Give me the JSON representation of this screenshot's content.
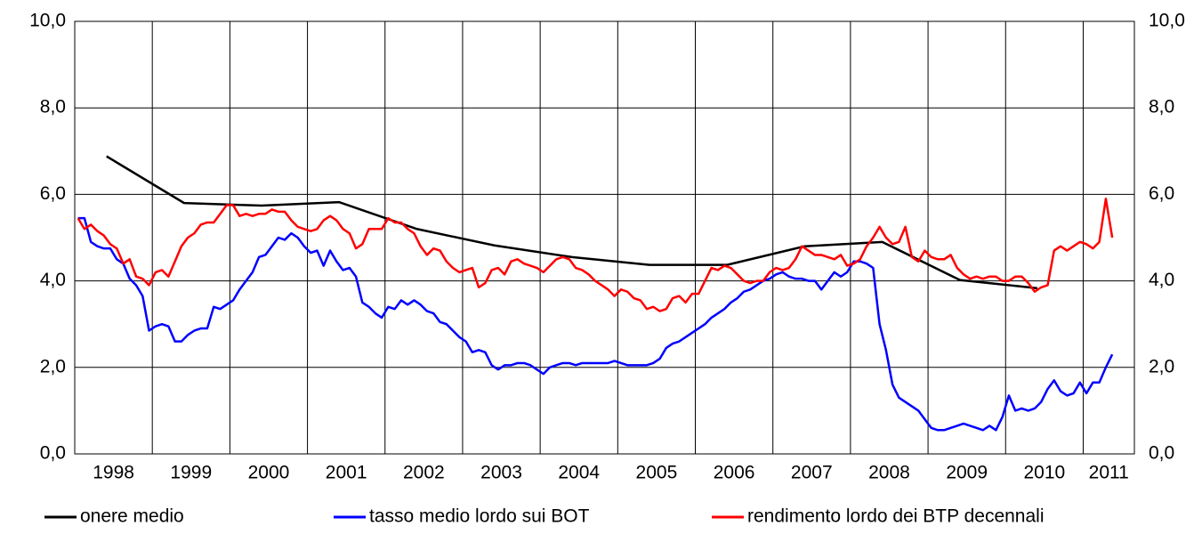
{
  "chart_data": {
    "type": "line",
    "x": [
      1998.042,
      1998.125,
      1998.208,
      1998.292,
      1998.375,
      1998.458,
      1998.542,
      1998.625,
      1998.708,
      1998.792,
      1998.875,
      1998.958,
      1999.042,
      1999.125,
      1999.208,
      1999.292,
      1999.375,
      1999.458,
      1999.542,
      1999.625,
      1999.708,
      1999.792,
      1999.875,
      1999.958,
      2000.042,
      2000.125,
      2000.208,
      2000.292,
      2000.375,
      2000.458,
      2000.542,
      2000.625,
      2000.708,
      2000.792,
      2000.875,
      2000.958,
      2001.042,
      2001.125,
      2001.208,
      2001.292,
      2001.375,
      2001.458,
      2001.542,
      2001.625,
      2001.708,
      2001.792,
      2001.875,
      2001.958,
      2002.042,
      2002.125,
      2002.208,
      2002.292,
      2002.375,
      2002.458,
      2002.542,
      2002.625,
      2002.708,
      2002.792,
      2002.875,
      2002.958,
      2003.042,
      2003.125,
      2003.208,
      2003.292,
      2003.375,
      2003.458,
      2003.542,
      2003.625,
      2003.708,
      2003.792,
      2003.875,
      2003.958,
      2004.042,
      2004.125,
      2004.208,
      2004.292,
      2004.375,
      2004.458,
      2004.542,
      2004.625,
      2004.708,
      2004.792,
      2004.875,
      2004.958,
      2005.042,
      2005.125,
      2005.208,
      2005.292,
      2005.375,
      2005.458,
      2005.542,
      2005.625,
      2005.708,
      2005.792,
      2005.875,
      2005.958,
      2006.042,
      2006.125,
      2006.208,
      2006.292,
      2006.375,
      2006.458,
      2006.542,
      2006.625,
      2006.708,
      2006.792,
      2006.875,
      2006.958,
      2007.042,
      2007.125,
      2007.208,
      2007.292,
      2007.375,
      2007.458,
      2007.542,
      2007.625,
      2007.708,
      2007.792,
      2007.875,
      2007.958,
      2008.042,
      2008.125,
      2008.208,
      2008.292,
      2008.375,
      2008.458,
      2008.542,
      2008.625,
      2008.708,
      2008.792,
      2008.875,
      2008.958,
      2009.042,
      2009.125,
      2009.208,
      2009.292,
      2009.375,
      2009.458,
      2009.542,
      2009.625,
      2009.708,
      2009.792,
      2009.875,
      2009.958,
      2010.042,
      2010.125,
      2010.208,
      2010.292,
      2010.375,
      2010.458,
      2010.542,
      2010.625,
      2010.708,
      2010.792,
      2010.875,
      2010.958,
      2011.042,
      2011.125,
      2011.208,
      2011.292,
      2011.375
    ],
    "series": [
      {
        "name": "onere medio",
        "color": "#000000",
        "x": [
          1998.41,
          1999.41,
          2000.41,
          2001.41,
          2002.41,
          2003.41,
          2004.41,
          2005.41,
          2006.41,
          2007.41,
          2008.41,
          2009.41,
          2010.41
        ],
        "values": [
          6.88,
          5.8,
          5.74,
          5.82,
          5.2,
          4.82,
          4.55,
          4.37,
          4.37,
          4.8,
          4.9,
          4.02,
          3.83
        ]
      },
      {
        "name": "tasso medio lordo sui BOT",
        "color": "#0000ff",
        "values": [
          5.45,
          5.45,
          4.9,
          4.8,
          4.75,
          4.75,
          4.5,
          4.4,
          4.05,
          3.9,
          3.65,
          2.85,
          2.95,
          3.0,
          2.95,
          2.6,
          2.6,
          2.75,
          2.85,
          2.9,
          2.9,
          3.4,
          3.35,
          3.45,
          3.55,
          3.8,
          4.0,
          4.2,
          4.55,
          4.6,
          4.8,
          5.0,
          4.95,
          5.1,
          5.0,
          4.8,
          4.65,
          4.7,
          4.35,
          4.7,
          4.45,
          4.25,
          4.3,
          4.1,
          3.5,
          3.4,
          3.25,
          3.15,
          3.4,
          3.35,
          3.55,
          3.45,
          3.55,
          3.45,
          3.3,
          3.25,
          3.05,
          3.0,
          2.85,
          2.7,
          2.6,
          2.35,
          2.4,
          2.35,
          2.05,
          1.95,
          2.05,
          2.05,
          2.1,
          2.1,
          2.05,
          1.95,
          1.85,
          2.0,
          2.05,
          2.1,
          2.1,
          2.05,
          2.1,
          2.1,
          2.1,
          2.1,
          2.1,
          2.15,
          2.1,
          2.05,
          2.05,
          2.05,
          2.05,
          2.1,
          2.2,
          2.45,
          2.55,
          2.6,
          2.7,
          2.8,
          2.9,
          3.0,
          3.15,
          3.25,
          3.35,
          3.5,
          3.6,
          3.75,
          3.8,
          3.9,
          4.0,
          4.05,
          4.15,
          4.2,
          4.1,
          4.05,
          4.05,
          4.0,
          4.0,
          3.8,
          4.0,
          4.2,
          4.1,
          4.2,
          4.45,
          4.45,
          4.4,
          4.3,
          3.0,
          2.4,
          1.6,
          1.3,
          1.2,
          1.1,
          1.0,
          0.8,
          0.6,
          0.55,
          0.55,
          0.6,
          0.65,
          0.7,
          0.65,
          0.6,
          0.55,
          0.65,
          0.55,
          0.85,
          1.35,
          1.0,
          1.05,
          1.0,
          1.05,
          1.2,
          1.5,
          1.7,
          1.45,
          1.35,
          1.4,
          1.65,
          1.4,
          1.65,
          1.65,
          2.0,
          2.3
        ]
      },
      {
        "name": "rendimento lordo dei BTP decennali",
        "color": "#ff0000",
        "values": [
          5.45,
          5.2,
          5.3,
          5.15,
          5.05,
          4.85,
          4.75,
          4.4,
          4.5,
          4.1,
          4.05,
          3.9,
          4.2,
          4.25,
          4.1,
          4.45,
          4.8,
          5.0,
          5.1,
          5.3,
          5.35,
          5.35,
          5.55,
          5.75,
          5.75,
          5.5,
          5.55,
          5.5,
          5.55,
          5.55,
          5.65,
          5.6,
          5.6,
          5.4,
          5.25,
          5.2,
          5.15,
          5.2,
          5.4,
          5.5,
          5.4,
          5.2,
          5.1,
          4.75,
          4.85,
          5.2,
          5.2,
          5.2,
          5.45,
          5.35,
          5.35,
          5.2,
          5.1,
          4.8,
          4.6,
          4.75,
          4.7,
          4.45,
          4.3,
          4.2,
          4.25,
          4.3,
          3.85,
          3.95,
          4.25,
          4.3,
          4.15,
          4.45,
          4.5,
          4.4,
          4.35,
          4.3,
          4.2,
          4.35,
          4.5,
          4.55,
          4.5,
          4.3,
          4.25,
          4.15,
          4.0,
          3.9,
          3.8,
          3.65,
          3.8,
          3.75,
          3.6,
          3.55,
          3.35,
          3.4,
          3.3,
          3.35,
          3.6,
          3.65,
          3.5,
          3.7,
          3.7,
          4.0,
          4.3,
          4.25,
          4.35,
          4.3,
          4.15,
          4.0,
          3.95,
          4.0,
          4.0,
          4.2,
          4.3,
          4.25,
          4.3,
          4.5,
          4.8,
          4.7,
          4.6,
          4.6,
          4.55,
          4.5,
          4.6,
          4.35,
          4.4,
          4.5,
          4.8,
          5.0,
          5.25,
          5.0,
          4.85,
          4.9,
          5.25,
          4.55,
          4.45,
          4.7,
          4.55,
          4.5,
          4.5,
          4.6,
          4.3,
          4.15,
          4.05,
          4.1,
          4.05,
          4.1,
          4.1,
          4.0,
          4.0,
          4.1,
          4.1,
          3.95,
          3.75,
          3.85,
          3.9,
          4.7,
          4.8,
          4.7,
          4.8,
          4.9,
          4.85,
          4.75,
          4.9,
          5.9,
          5.0
        ]
      }
    ],
    "xlim": [
      1998,
      2011.66
    ],
    "xticks": [
      {
        "value": 1998.5,
        "label": "1998"
      },
      {
        "value": 1999.5,
        "label": "1999"
      },
      {
        "value": 2000.5,
        "label": "2000"
      },
      {
        "value": 2001.5,
        "label": "2001"
      },
      {
        "value": 2002.5,
        "label": "2002"
      },
      {
        "value": 2003.5,
        "label": "2003"
      },
      {
        "value": 2004.5,
        "label": "2004"
      },
      {
        "value": 2005.5,
        "label": "2005"
      },
      {
        "value": 2006.5,
        "label": "2006"
      },
      {
        "value": 2007.5,
        "label": "2007"
      },
      {
        "value": 2008.5,
        "label": "2008"
      },
      {
        "value": 2009.5,
        "label": "2009"
      },
      {
        "value": 2010.5,
        "label": "2010"
      },
      {
        "value": 2011.33,
        "label": "2011"
      }
    ],
    "xgrid": [
      1999,
      2000,
      2001,
      2002,
      2003,
      2004,
      2005,
      2006,
      2007,
      2008,
      2009,
      2010,
      2011
    ],
    "ylim": [
      0,
      10
    ],
    "yticks": [
      {
        "value": 0,
        "label": "0,0"
      },
      {
        "value": 2,
        "label": "2,0"
      },
      {
        "value": 4,
        "label": "4,0"
      },
      {
        "value": 6,
        "label": "6,0"
      },
      {
        "value": 8,
        "label": "8,0"
      },
      {
        "value": 10,
        "label": "10,0"
      }
    ],
    "y2lim": [
      0,
      10
    ],
    "y2ticks": [
      {
        "value": 0,
        "label": "0,0"
      },
      {
        "value": 2,
        "label": "2,0"
      },
      {
        "value": 4,
        "label": "4,0"
      },
      {
        "value": 6,
        "label": "6,0"
      },
      {
        "value": 8,
        "label": "8,0"
      },
      {
        "value": 10,
        "label": "10,0"
      }
    ],
    "grid": true,
    "legend": "bottom"
  }
}
